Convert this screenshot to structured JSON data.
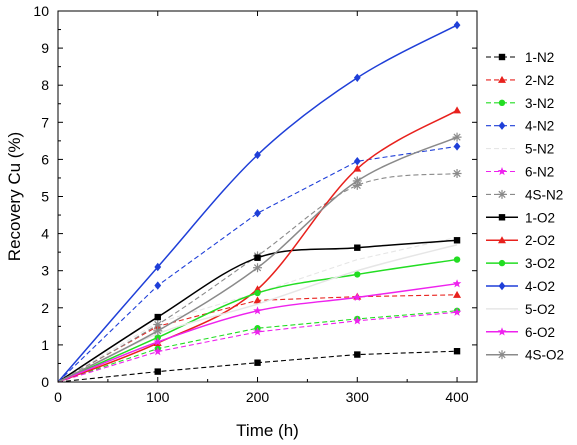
{
  "chart_data": {
    "type": "line",
    "title": "",
    "xlabel": "Time (h)",
    "ylabel": "Recovery Cu (%)",
    "xlim": [
      0,
      420
    ],
    "ylim": [
      0,
      10
    ],
    "xticks": [
      0,
      100,
      200,
      300,
      400
    ],
    "yticks": [
      0,
      1,
      2,
      3,
      4,
      5,
      6,
      7,
      8,
      9,
      10
    ],
    "x": [
      0,
      100,
      200,
      300,
      400
    ],
    "grid": false,
    "legend_position": "right",
    "series": [
      {
        "name": "1-N2",
        "values": [
          0,
          0.28,
          0.52,
          0.74,
          0.83
        ],
        "color": "#000000",
        "dash": true,
        "marker": "square",
        "smooth": false
      },
      {
        "name": "2-N2",
        "values": [
          0,
          1.5,
          2.2,
          2.3,
          2.35
        ],
        "color": "#e8211d",
        "dash": true,
        "marker": "triangle",
        "smooth": false
      },
      {
        "name": "3-N2",
        "values": [
          0,
          0.9,
          1.45,
          1.7,
          1.92
        ],
        "color": "#22dd22",
        "dash": true,
        "marker": "circle",
        "smooth": false
      },
      {
        "name": "4-N2",
        "values": [
          0,
          2.6,
          4.55,
          5.95,
          6.35
        ],
        "color": "#1f3fd8",
        "dash": true,
        "marker": "diamond",
        "smooth": false
      },
      {
        "name": "5-N2",
        "values": [
          0,
          1.6,
          2.4,
          3.3,
          3.9
        ],
        "color": "#e6e6e6",
        "dash": true,
        "marker": "none",
        "smooth": false
      },
      {
        "name": "6-N2",
        "values": [
          0,
          0.82,
          1.35,
          1.65,
          1.88
        ],
        "color": "#ee22ee",
        "dash": true,
        "marker": "star",
        "smooth": false
      },
      {
        "name": "4S-N2",
        "values": [
          0,
          1.55,
          3.4,
          5.3,
          5.62
        ],
        "color": "#8a8a8a",
        "dash": true,
        "marker": "asterisk",
        "smooth": true
      },
      {
        "name": "1-O2",
        "values": [
          0,
          1.75,
          3.35,
          3.62,
          3.82
        ],
        "color": "#000000",
        "dash": false,
        "marker": "square",
        "smooth": true
      },
      {
        "name": "2-O2",
        "values": [
          0,
          1.05,
          2.5,
          5.75,
          7.32
        ],
        "color": "#e8211d",
        "dash": false,
        "marker": "triangle",
        "smooth": true
      },
      {
        "name": "3-O2",
        "values": [
          0,
          1.2,
          2.4,
          2.9,
          3.3
        ],
        "color": "#22dd22",
        "dash": false,
        "marker": "circle",
        "smooth": true
      },
      {
        "name": "4-O2",
        "values": [
          0,
          3.1,
          6.12,
          8.2,
          9.62
        ],
        "color": "#1f3fd8",
        "dash": false,
        "marker": "diamond",
        "smooth": true
      },
      {
        "name": "5-O2",
        "values": [
          0,
          1.3,
          2.1,
          3.0,
          3.7
        ],
        "color": "#e6e6e6",
        "dash": false,
        "marker": "none",
        "smooth": true
      },
      {
        "name": "6-O2",
        "values": [
          0,
          1.08,
          1.92,
          2.28,
          2.65
        ],
        "color": "#ee22ee",
        "dash": false,
        "marker": "star",
        "smooth": true
      },
      {
        "name": "4S-O2",
        "values": [
          0,
          1.38,
          3.08,
          5.42,
          6.6
        ],
        "color": "#8a8a8a",
        "dash": false,
        "marker": "asterisk",
        "smooth": true
      }
    ]
  }
}
